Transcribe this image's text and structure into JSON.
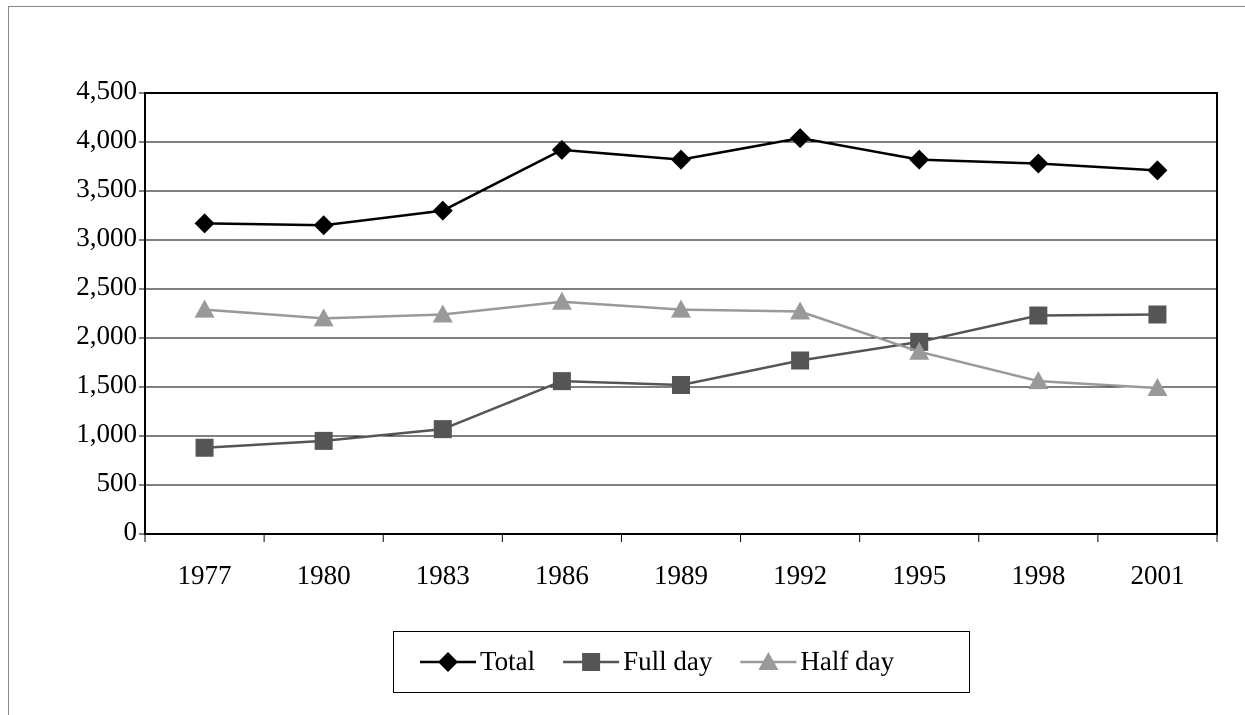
{
  "chart_data": {
    "type": "line",
    "categories": [
      "1977",
      "1980",
      "1983",
      "1986",
      "1989",
      "1992",
      "1995",
      "1998",
      "2001"
    ],
    "series": [
      {
        "name": "Total",
        "color": "#000000",
        "marker": "diamond",
        "values": [
          3170,
          3150,
          3300,
          3920,
          3820,
          4040,
          3820,
          3780,
          3710
        ]
      },
      {
        "name": "Full day",
        "color": "#555555",
        "marker": "square",
        "values": [
          880,
          950,
          1070,
          1560,
          1520,
          1770,
          1960,
          2230,
          2240
        ]
      },
      {
        "name": "Half day",
        "color": "#999999",
        "marker": "triangle",
        "values": [
          2290,
          2200,
          2240,
          2370,
          2290,
          2270,
          1860,
          1560,
          1490
        ]
      }
    ],
    "ylim": [
      0,
      4500
    ],
    "yticks": [
      0,
      500,
      {
        "value": 1000,
        "label": "1,000"
      },
      {
        "value": 1500,
        "label": "1,500"
      },
      {
        "value": 2000,
        "label": "2,000"
      },
      {
        "value": 2500,
        "label": "2,500"
      },
      {
        "value": 3000,
        "label": "3,000"
      },
      {
        "value": 3500,
        "label": "3,500"
      },
      {
        "value": 4000,
        "label": "4,000"
      },
      {
        "value": 4500,
        "label": "4,500"
      }
    ],
    "grid": true,
    "legend": "bottom"
  }
}
